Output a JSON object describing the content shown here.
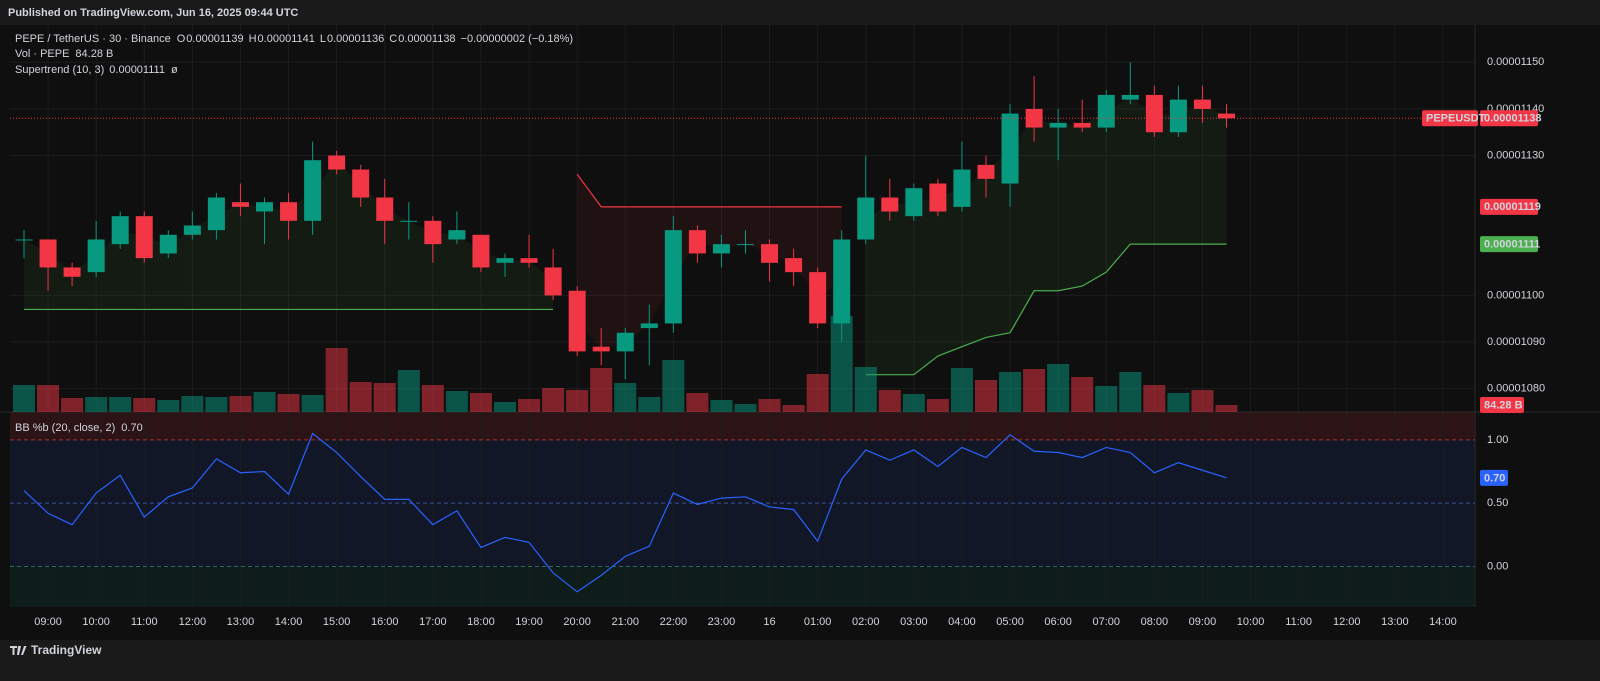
{
  "publisher": "Published on TradingView.com, Jun 16, 2025 09:44 UTC",
  "footer": "TradingView",
  "chart_data": [
    {
      "type": "candlestick",
      "legend": {
        "symbol": "PEPE / TetherUS · 30 · Binance",
        "ohlc": [
          {
            "k": "O",
            "v": "0.00001139"
          },
          {
            "k": "H",
            "v": "0.00001141"
          },
          {
            "k": "L",
            "v": "0.00001136"
          },
          {
            "k": "C",
            "v": "0.00001138"
          }
        ],
        "change": "−0.00000002 (−0.18%)",
        "value_color": "#f23645",
        "vol_label": "Vol · PEPE",
        "vol_value": "84.28 B",
        "supertrend_label": "Supertrend (10, 3)",
        "supertrend_value": "0.00001111",
        "supertrend_symbol": "ø"
      },
      "xticks": [
        "09:00",
        "10:00",
        "11:00",
        "12:00",
        "13:00",
        "14:00",
        "15:00",
        "16:00",
        "17:00",
        "18:00",
        "19:00",
        "20:00",
        "21:00",
        "22:00",
        "23:00",
        "16",
        "01:00",
        "02:00",
        "03:00",
        "04:00",
        "05:00",
        "06:00",
        "07:00",
        "08:00",
        "09:00",
        "10:00",
        "11:00",
        "12:00",
        "13:00",
        "14:00"
      ],
      "ylim": [
        1.075e-05,
        1.158e-05
      ],
      "yticks": [
        {
          "value": 1.15e-05,
          "label": "0.00001150"
        },
        {
          "value": 1.14e-05,
          "label": "0.00001140"
        },
        {
          "value": 1.13e-05,
          "label": "0.00001130"
        },
        {
          "value": 1.1e-05,
          "label": "0.00001100"
        },
        {
          "value": 1.09e-05,
          "label": "0.00001090"
        },
        {
          "value": 1.08e-05,
          "label": "0.00001080"
        }
      ],
      "up_color": "#089981",
      "down_color": "#f23645",
      "open": [
        1.112e-05,
        1.112e-05,
        1.106e-05,
        1.105e-05,
        1.111e-05,
        1.117e-05,
        1.109e-05,
        1.113e-05,
        1.114e-05,
        1.12e-05,
        1.118e-05,
        1.12e-05,
        1.116e-05,
        1.13e-05,
        1.127e-05,
        1.121e-05,
        1.116e-05,
        1.116e-05,
        1.112e-05,
        1.113e-05,
        1.107e-05,
        1.108e-05,
        1.106e-05,
        1.101e-05,
        1.089e-05,
        1.088e-05,
        1.093e-05,
        1.094e-05,
        1.114e-05,
        1.109e-05,
        1.111e-05,
        1.111e-05,
        1.108e-05,
        1.105e-05,
        1.094e-05,
        1.112e-05,
        1.121e-05,
        1.117e-05,
        1.124e-05,
        1.119e-05,
        1.128e-05,
        1.124e-05,
        1.14e-05,
        1.136e-05,
        1.137e-05,
        1.136e-05,
        1.142e-05,
        1.143e-05,
        1.135e-05,
        1.142e-05,
        1.139e-05
      ],
      "high": [
        1.114e-05,
        1.112e-05,
        1.107e-05,
        1.116e-05,
        1.118e-05,
        1.118e-05,
        1.114e-05,
        1.118e-05,
        1.122e-05,
        1.124e-05,
        1.121e-05,
        1.122e-05,
        1.133e-05,
        1.131e-05,
        1.128e-05,
        1.125e-05,
        1.12e-05,
        1.117e-05,
        1.118e-05,
        1.113e-05,
        1.109e-05,
        1.113e-05,
        1.11e-05,
        1.102e-05,
        1.093e-05,
        1.093e-05,
        1.098e-05,
        1.117e-05,
        1.115e-05,
        1.113e-05,
        1.114e-05,
        1.112e-05,
        1.11e-05,
        1.106e-05,
        1.114e-05,
        1.13e-05,
        1.125e-05,
        1.124e-05,
        1.125e-05,
        1.133e-05,
        1.13e-05,
        1.141e-05,
        1.147e-05,
        1.14e-05,
        1.142e-05,
        1.144e-05,
        1.15e-05,
        1.145e-05,
        1.145e-05,
        1.145e-05,
        1.141e-05
      ],
      "low": [
        1.108e-05,
        1.101e-05,
        1.102e-05,
        1.104e-05,
        1.11e-05,
        1.107e-05,
        1.108e-05,
        1.112e-05,
        1.112e-05,
        1.117e-05,
        1.111e-05,
        1.112e-05,
        1.113e-05,
        1.126e-05,
        1.119e-05,
        1.111e-05,
        1.112e-05,
        1.107e-05,
        1.111e-05,
        1.105e-05,
        1.104e-05,
        1.106e-05,
        1.099e-05,
        1.087e-05,
        1.085e-05,
        1.082e-05,
        1.085e-05,
        1.092e-05,
        1.107e-05,
        1.106e-05,
        1.109e-05,
        1.103e-05,
        1.102e-05,
        1.093e-05,
        1.09e-05,
        1.111e-05,
        1.116e-05,
        1.116e-05,
        1.117e-05,
        1.118e-05,
        1.121e-05,
        1.119e-05,
        1.133e-05,
        1.129e-05,
        1.135e-05,
        1.135e-05,
        1.141e-05,
        1.134e-05,
        1.134e-05,
        1.137e-05,
        1.136e-05
      ],
      "close": [
        1.112e-05,
        1.106e-05,
        1.104e-05,
        1.112e-05,
        1.117e-05,
        1.108e-05,
        1.113e-05,
        1.115e-05,
        1.121e-05,
        1.119e-05,
        1.12e-05,
        1.116e-05,
        1.129e-05,
        1.127e-05,
        1.121e-05,
        1.116e-05,
        1.116e-05,
        1.111e-05,
        1.114e-05,
        1.106e-05,
        1.108e-05,
        1.107e-05,
        1.1e-05,
        1.088e-05,
        1.088e-05,
        1.092e-05,
        1.094e-05,
        1.114e-05,
        1.109e-05,
        1.111e-05,
        1.111e-05,
        1.107e-05,
        1.105e-05,
        1.094e-05,
        1.112e-05,
        1.121e-05,
        1.118e-05,
        1.123e-05,
        1.118e-05,
        1.127e-05,
        1.125e-05,
        1.139e-05,
        1.136e-05,
        1.137e-05,
        1.136e-05,
        1.143e-05,
        1.143e-05,
        1.135e-05,
        1.142e-05,
        1.14e-05,
        1.138e-05
      ],
      "volume": {
        "ylim": [
          0,
          4644
        ],
        "last_label": "84.28 B",
        "values": [
          324,
          324,
          168,
          180,
          180,
          168,
          144,
          192,
          180,
          192,
          240,
          216,
          204,
          768,
          360,
          348,
          504,
          324,
          252,
          228,
          120,
          156,
          288,
          264,
          528,
          348,
          180,
          624,
          228,
          144,
          96,
          156,
          84,
          456,
          1152,
          540,
          264,
          216,
          156,
          528,
          384,
          480,
          516,
          576,
          420,
          312,
          480,
          324,
          228,
          264,
          84.28
        ]
      },
      "supertrend": {
        "series": [
          {
            "name": "up",
            "color": "#4caf50",
            "values": [
              1.097e-05,
              1.097e-05,
              1.097e-05,
              1.097e-05,
              1.097e-05,
              1.097e-05,
              1.097e-05,
              1.097e-05,
              1.097e-05,
              1.097e-05,
              1.097e-05,
              1.097e-05,
              1.097e-05,
              1.097e-05,
              1.097e-05,
              1.097e-05,
              1.097e-05,
              1.097e-05,
              1.097e-05,
              1.097e-05,
              1.097e-05,
              1.097e-05,
              1.097e-05,
              null,
              null,
              null,
              null,
              null,
              null,
              null,
              null,
              null,
              null,
              null,
              null,
              1.083e-05,
              1.083e-05,
              1.083e-05,
              1.087e-05,
              1.089e-05,
              1.091e-05,
              1.092e-05,
              1.101e-05,
              1.101e-05,
              1.102e-05,
              1.105e-05,
              1.111e-05,
              1.111e-05,
              1.111e-05,
              1.111e-05,
              1.111e-05
            ]
          },
          {
            "name": "down",
            "color": "#f23645",
            "values": [
              null,
              null,
              null,
              null,
              null,
              null,
              null,
              null,
              null,
              null,
              null,
              null,
              null,
              null,
              null,
              null,
              null,
              null,
              null,
              null,
              null,
              null,
              null,
              1.126e-05,
              1.119e-05,
              1.119e-05,
              1.119e-05,
              1.119e-05,
              1.119e-05,
              1.119e-05,
              1.119e-05,
              1.119e-05,
              1.119e-05,
              1.119e-05,
              1.119e-05,
              null,
              null,
              null,
              null,
              null,
              null,
              null,
              null,
              null,
              null,
              null,
              null,
              null,
              null,
              null,
              null
            ]
          }
        ]
      },
      "symbol_tag": "PEPEUSDT",
      "tags": [
        {
          "text": "0.00001138",
          "value": 1.138e-05,
          "color": "#f23645"
        },
        {
          "text": "0.00001119",
          "value": 1.119e-05,
          "color": "#f23645"
        },
        {
          "text": "0.00001111",
          "value": 1.111e-05,
          "color": "#4caf50"
        }
      ]
    },
    {
      "type": "line",
      "title": "BB %b (20, close, 2)",
      "last_label": "0.70",
      "color": "#2962ff",
      "ylim": [
        -0.32,
        1.22
      ],
      "yticks": [
        {
          "value": 1,
          "label": "1.00"
        },
        {
          "value": 0.5,
          "label": "0.50"
        },
        {
          "value": 0,
          "label": "0.00"
        }
      ],
      "values": [
        0.6,
        0.42,
        0.33,
        0.58,
        0.72,
        0.39,
        0.55,
        0.62,
        0.85,
        0.74,
        0.75,
        0.57,
        1.05,
        0.9,
        0.71,
        0.53,
        0.53,
        0.33,
        0.44,
        0.15,
        0.23,
        0.19,
        -0.05,
        -0.2,
        -0.07,
        0.08,
        0.16,
        0.58,
        0.49,
        0.54,
        0.55,
        0.47,
        0.45,
        0.2,
        0.69,
        0.92,
        0.84,
        0.92,
        0.79,
        0.94,
        0.86,
        1.04,
        0.91,
        0.9,
        0.86,
        0.94,
        0.9,
        0.74,
        0.82,
        0.76,
        0.7
      ]
    }
  ]
}
